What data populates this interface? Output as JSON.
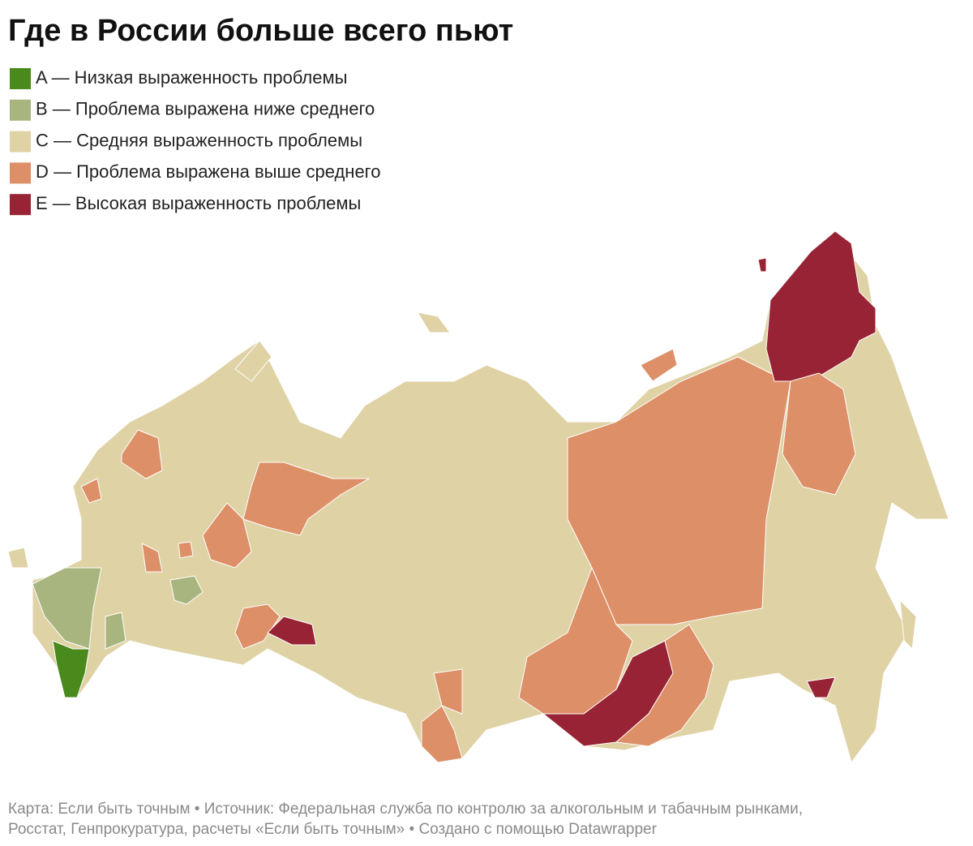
{
  "header": {
    "title": "Где в России больше всего пьют"
  },
  "legend": {
    "items": [
      {
        "label": "A — Низкая выраженность проблемы",
        "color": "#4a8a1c"
      },
      {
        "label": "B — Проблема выражена ниже среднего",
        "color": "#a9b57e"
      },
      {
        "label": "C — Средняя выраженность проблемы",
        "color": "#dfd2a5"
      },
      {
        "label": "D — Проблема выражена выше среднего",
        "color": "#dd8f67"
      },
      {
        "label": "E — Высокая выраженность проблемы",
        "color": "#972334"
      }
    ]
  },
  "footer": [
    "Карта: Если быть точным • Источник: Федеральная служба по контролю за алкогольным и табачным рынками,",
    "Росстат, Генпрокуратура, расчеты «Если быть точным» • Создано с помощью Datawrapper"
  ]
}
